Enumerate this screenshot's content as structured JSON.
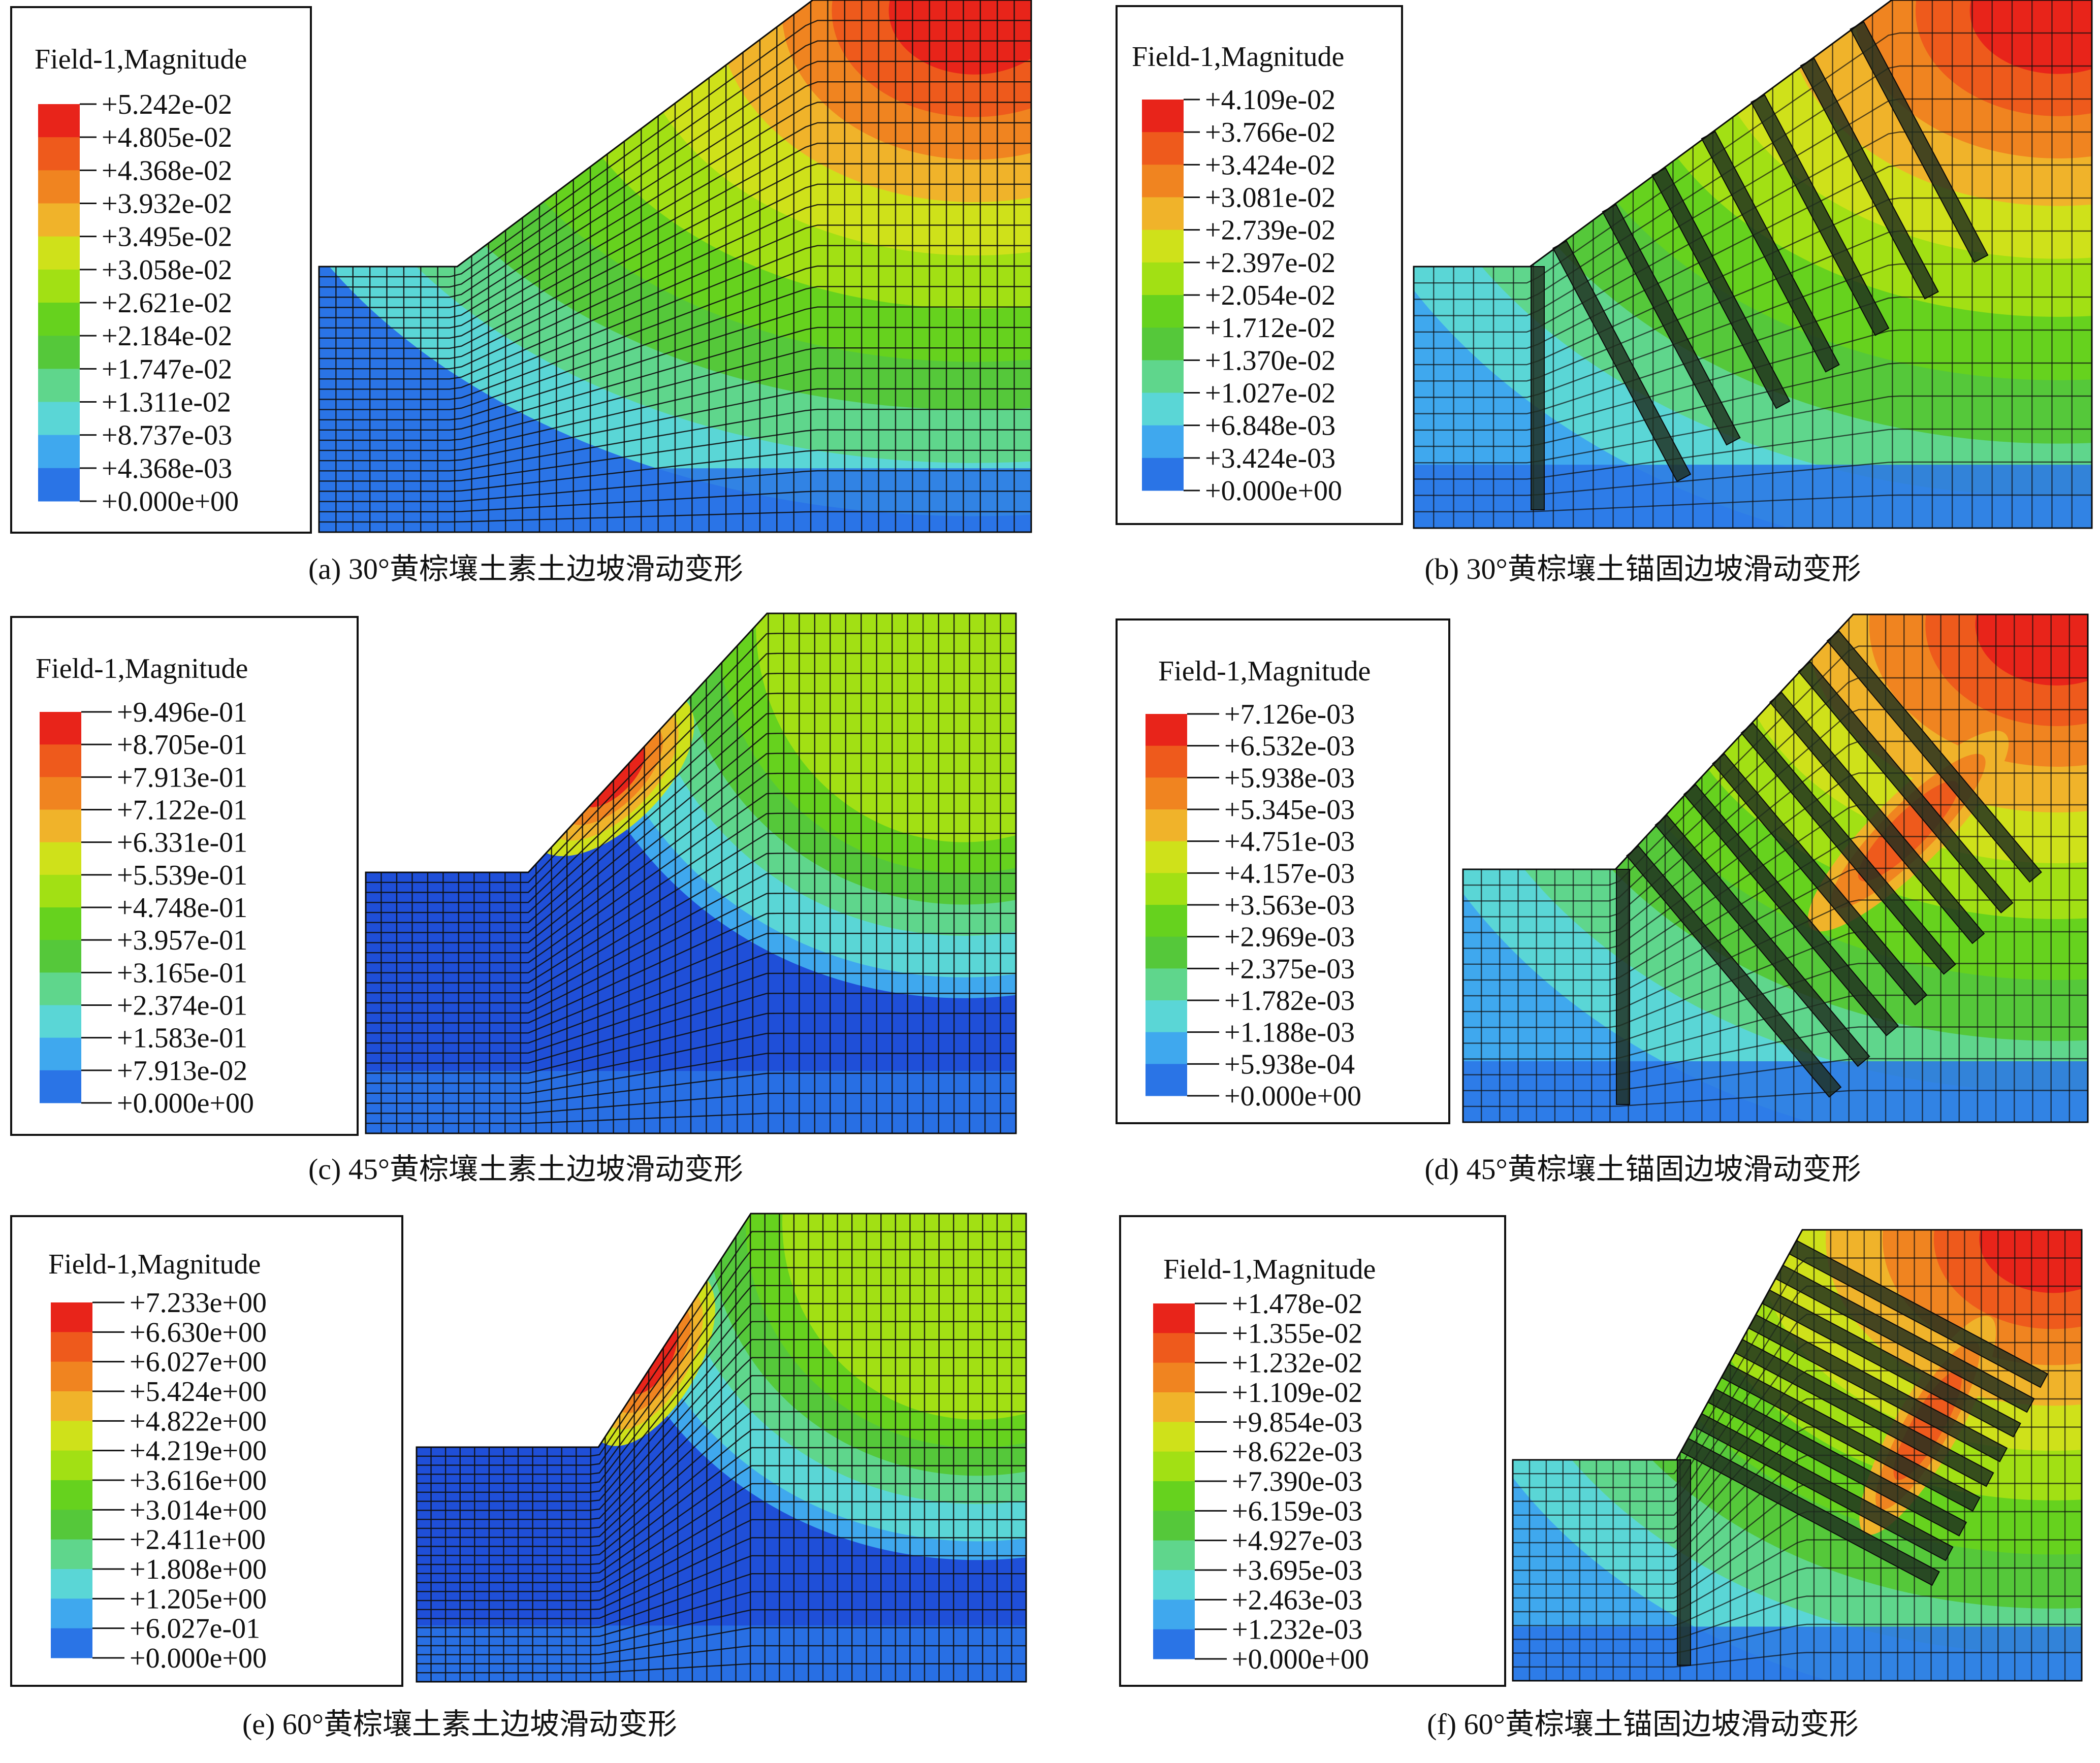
{
  "palette": [
    "#1f4fd8",
    "#2a74e6",
    "#3fa8ee",
    "#5ad6d6",
    "#5fd68c",
    "#55c83a",
    "#66d21e",
    "#a2e014",
    "#cfe11a",
    "#f0b32a",
    "#f08420",
    "#ee5a1c",
    "#e8241a"
  ],
  "panels": [
    {
      "id": "a",
      "caption": "(a) 30°黄棕壤土素土边坡滑动变形",
      "legend_title": "Field-1,Magnitude",
      "legend_values": [
        "+5.242e-02",
        "+4.805e-02",
        "+4.368e-02",
        "+3.932e-02",
        "+3.495e-02",
        "+3.058e-02",
        "+2.621e-02",
        "+2.184e-02",
        "+1.747e-02",
        "+1.311e-02",
        "+8.737e-03",
        "+4.368e-03",
        "+0.000e+00"
      ],
      "slope_angle_deg": 30,
      "anchored": false
    },
    {
      "id": "b",
      "caption": "(b) 30°黄棕壤土锚固边坡滑动变形",
      "legend_title": "Field-1,Magnitude",
      "legend_values": [
        "+4.109e-02",
        "+3.766e-02",
        "+3.424e-02",
        "+3.081e-02",
        "+2.739e-02",
        "+2.397e-02",
        "+2.054e-02",
        "+1.712e-02",
        "+1.370e-02",
        "+1.027e-02",
        "+6.848e-03",
        "+3.424e-03",
        "+0.000e+00"
      ],
      "slope_angle_deg": 30,
      "anchored": true
    },
    {
      "id": "c",
      "caption": "(c) 45°黄棕壤土素土边坡滑动变形",
      "legend_title": "Field-1,Magnitude",
      "legend_values": [
        "+9.496e-01",
        "+8.705e-01",
        "+7.913e-01",
        "+7.122e-01",
        "+6.331e-01",
        "+5.539e-01",
        "+4.748e-01",
        "+3.957e-01",
        "+3.165e-01",
        "+2.374e-01",
        "+1.583e-01",
        "+7.913e-02",
        "+0.000e+00"
      ],
      "slope_angle_deg": 45,
      "anchored": false
    },
    {
      "id": "d",
      "caption": "(d) 45°黄棕壤土锚固边坡滑动变形",
      "legend_title": "Field-1,Magnitude",
      "legend_values": [
        "+7.126e-03",
        "+6.532e-03",
        "+5.938e-03",
        "+5.345e-03",
        "+4.751e-03",
        "+4.157e-03",
        "+3.563e-03",
        "+2.969e-03",
        "+2.375e-03",
        "+1.782e-03",
        "+1.188e-03",
        "+5.938e-04",
        "+0.000e+00"
      ],
      "slope_angle_deg": 45,
      "anchored": true
    },
    {
      "id": "e",
      "caption": "(e) 60°黄棕壤土素土边坡滑动变形",
      "legend_title": "Field-1,Magnitude",
      "legend_values": [
        "+7.233e+00",
        "+6.630e+00",
        "+6.027e+00",
        "+5.424e+00",
        "+4.822e+00",
        "+4.219e+00",
        "+3.616e+00",
        "+3.014e+00",
        "+2.411e+00",
        "+1.808e+00",
        "+1.205e+00",
        "+6.027e-01",
        "+0.000e+00"
      ],
      "slope_angle_deg": 60,
      "anchored": false
    },
    {
      "id": "f",
      "caption": "(f) 60°黄棕壤土锚固边坡滑动变形",
      "legend_title": "Field-1,Magnitude",
      "legend_values": [
        "+1.478e-02",
        "+1.355e-02",
        "+1.232e-02",
        "+1.109e-02",
        "+9.854e-03",
        "+8.622e-03",
        "+7.390e-03",
        "+6.159e-03",
        "+4.927e-03",
        "+3.695e-03",
        "+2.463e-03",
        "+1.232e-03",
        "+0.000e+00"
      ],
      "slope_angle_deg": 60,
      "anchored": true
    }
  ]
}
